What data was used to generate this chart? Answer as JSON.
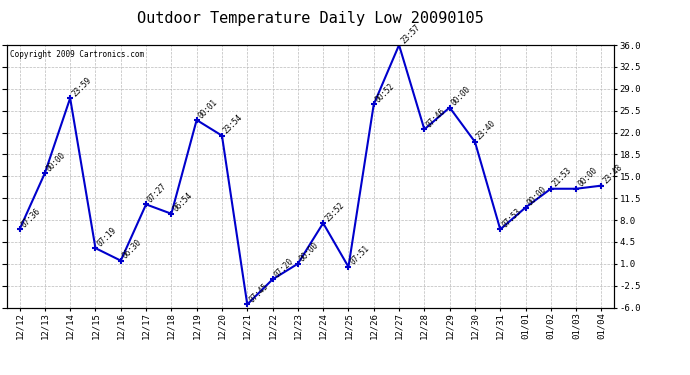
{
  "title": "Outdoor Temperature Daily Low 20090105",
  "copyright": "Copyright 2009 Cartronics.com",
  "x_labels": [
    "12/12",
    "12/13",
    "12/14",
    "12/15",
    "12/16",
    "12/17",
    "12/18",
    "12/19",
    "12/20",
    "12/21",
    "12/22",
    "12/23",
    "12/24",
    "12/25",
    "12/26",
    "12/27",
    "12/28",
    "12/29",
    "12/30",
    "12/31",
    "01/01",
    "01/02",
    "01/03",
    "01/04"
  ],
  "y_values": [
    6.5,
    15.5,
    27.5,
    3.5,
    1.5,
    10.5,
    9.0,
    24.0,
    21.5,
    -5.5,
    -1.5,
    1.0,
    7.5,
    0.5,
    26.5,
    36.0,
    22.5,
    26.0,
    20.5,
    6.5,
    10.0,
    13.0,
    13.0,
    13.5
  ],
  "time_labels": [
    "07:36",
    "00:00",
    "23:59",
    "07:19",
    "06:30",
    "07:27",
    "06:54",
    "00:01",
    "23:54",
    "07:45",
    "07:20",
    "00:00",
    "23:52",
    "07:51",
    "00:52",
    "23:57",
    "07:46",
    "00:00",
    "23:40",
    "07:53",
    "00:00",
    "21:53",
    "00:00",
    "23:48"
  ],
  "line_color": "#0000cc",
  "marker_color": "#0000cc",
  "bg_color": "#ffffff",
  "grid_color": "#bbbbbb",
  "ylim": [
    -6.0,
    36.0
  ],
  "yticks": [
    -6.0,
    -2.5,
    1.0,
    4.5,
    8.0,
    11.5,
    15.0,
    18.5,
    22.0,
    25.5,
    29.0,
    32.5,
    36.0
  ],
  "ytick_labels": [
    "-6.0",
    "-2.5",
    "1.0",
    "4.5",
    "8.0",
    "11.5",
    "15.0",
    "18.5",
    "22.0",
    "25.5",
    "29.0",
    "32.5",
    "36.0"
  ],
  "title_fontsize": 11,
  "copyright_fontsize": 5.5,
  "label_fontsize": 5.5,
  "tick_fontsize": 6.5
}
